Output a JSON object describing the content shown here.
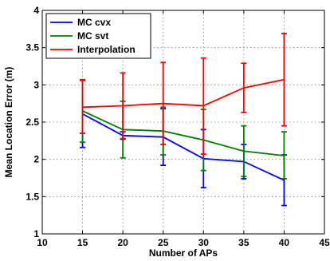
{
  "chart_data": {
    "type": "line",
    "xlabel": "Number of APs",
    "ylabel": "Mean Location Error (m)",
    "xlim": [
      10,
      45
    ],
    "ylim": [
      1,
      4
    ],
    "xticks": [
      10,
      15,
      20,
      25,
      30,
      35,
      40,
      45
    ],
    "yticks": [
      1,
      1.5,
      2,
      2.5,
      3,
      3.5,
      4
    ],
    "grid": true,
    "legend_position": "top-left",
    "x": [
      15,
      20,
      25,
      30,
      35,
      40
    ],
    "series": [
      {
        "name": "MC cvx",
        "color": "#0000ff",
        "values": [
          2.61,
          2.32,
          2.3,
          2.01,
          1.97,
          1.72
        ],
        "err_low": [
          2.16,
          2.27,
          1.92,
          1.62,
          1.74,
          1.38
        ],
        "err_high": [
          3.06,
          2.37,
          2.68,
          2.4,
          2.2,
          2.06
        ]
      },
      {
        "name": "MC svt",
        "color": "#008000",
        "values": [
          2.65,
          2.4,
          2.38,
          2.26,
          2.11,
          2.05
        ],
        "err_low": [
          2.23,
          2.02,
          2.06,
          1.85,
          1.77,
          1.74
        ],
        "err_high": [
          3.07,
          2.78,
          2.7,
          2.67,
          2.45,
          2.37
        ]
      },
      {
        "name": "Interpolation",
        "color": "#ff0000",
        "values": [
          2.7,
          2.72,
          2.75,
          2.72,
          2.96,
          3.07
        ],
        "err_low": [
          2.35,
          2.28,
          2.2,
          2.07,
          2.63,
          2.45
        ],
        "err_high": [
          3.06,
          3.16,
          3.3,
          3.36,
          3.29,
          3.69
        ]
      }
    ]
  }
}
